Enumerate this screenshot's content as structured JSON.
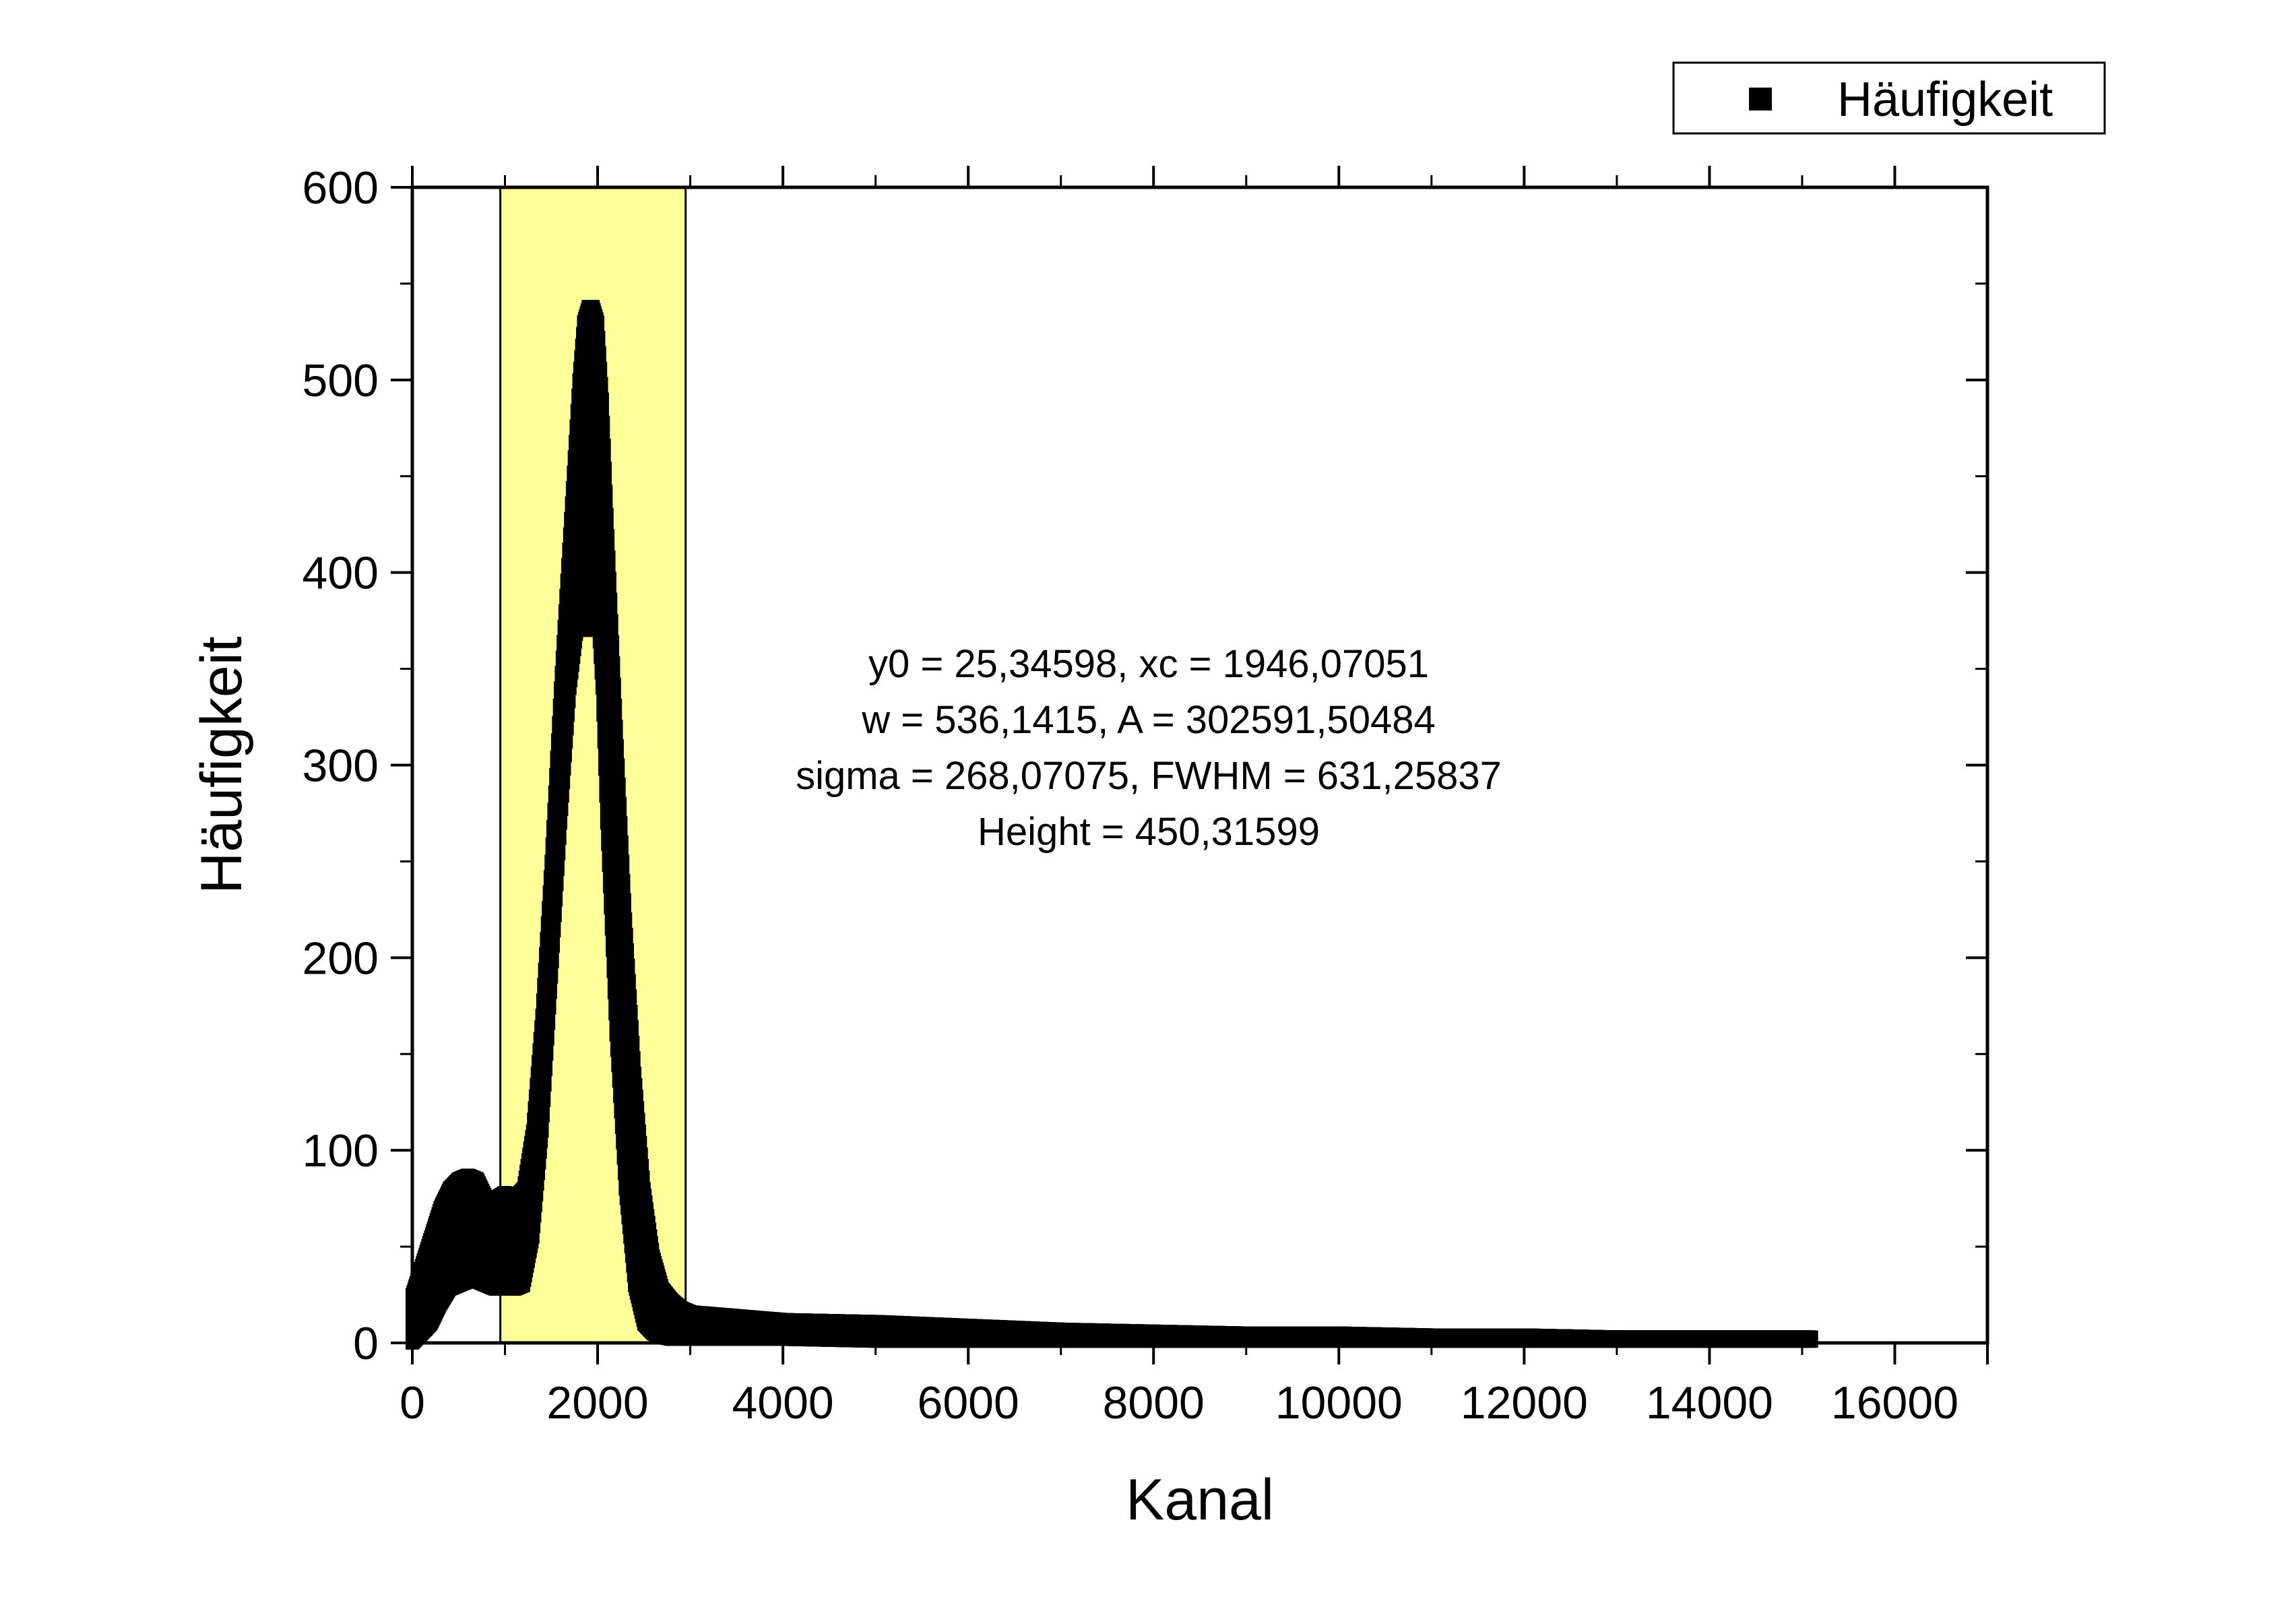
{
  "chart_data": {
    "type": "scatter",
    "title": "",
    "xlabel": "Kanal",
    "ylabel": "Häufigkeit",
    "xlim": [
      0,
      17000
    ],
    "ylim": [
      0,
      600
    ],
    "x_ticks": [
      0,
      2000,
      4000,
      6000,
      8000,
      10000,
      12000,
      14000,
      16000
    ],
    "x_tick_labels": [
      "0",
      "2000",
      "4000",
      "6000",
      "8000",
      "10000",
      "12000",
      "14000",
      "16000"
    ],
    "y_ticks": [
      0,
      100,
      200,
      300,
      400,
      500,
      600
    ],
    "y_tick_labels": [
      "0",
      "100",
      "200",
      "300",
      "400",
      "500",
      "600"
    ],
    "grid": false,
    "legend_position": "top-right",
    "highlight_region": {
      "x_start": 950,
      "x_end": 2950,
      "color": "#ffff99"
    },
    "annotation": [
      "y0 = 25,34598, xc = 1946,07051",
      "w = 536,1415, A = 302591,50484",
      "sigma = 268,07075, FWHM = 631,25837",
      "Height = 450,31599"
    ],
    "series": [
      {
        "name": "Häufigkeit",
        "marker": "square",
        "color": "#000000",
        "envelope": {
          "x": [
            0,
            100,
            200,
            300,
            400,
            500,
            600,
            700,
            800,
            900,
            1000,
            1100,
            1200,
            1300,
            1400,
            1500,
            1600,
            1700,
            1800,
            1850,
            1900,
            1950,
            2000,
            2050,
            2100,
            2200,
            2300,
            2400,
            2500,
            2600,
            2700,
            2800,
            2900,
            3000,
            3500,
            4000,
            5000,
            6000,
            7000,
            8000,
            9000,
            10000,
            11000,
            12000,
            13000,
            14000,
            15100
          ],
          "upper": [
            25,
            40,
            55,
            70,
            80,
            85,
            87,
            85,
            75,
            75,
            78,
            75,
            80,
            110,
            170,
            250,
            340,
            420,
            500,
            530,
            538,
            538,
            530,
            490,
            430,
            320,
            220,
            140,
            80,
            45,
            28,
            22,
            18,
            16,
            14,
            12,
            11,
            9,
            7,
            6,
            5,
            5,
            4,
            4,
            3,
            3,
            3
          ],
          "lower": [
            0,
            5,
            10,
            20,
            28,
            30,
            32,
            32,
            30,
            28,
            28,
            28,
            30,
            55,
            110,
            190,
            270,
            340,
            380,
            390,
            370,
            390,
            380,
            340,
            270,
            160,
            80,
            30,
            10,
            5,
            3,
            2,
            2,
            2,
            2,
            2,
            1,
            1,
            1,
            1,
            1,
            1,
            1,
            1,
            1,
            1,
            1
          ]
        }
      }
    ]
  }
}
